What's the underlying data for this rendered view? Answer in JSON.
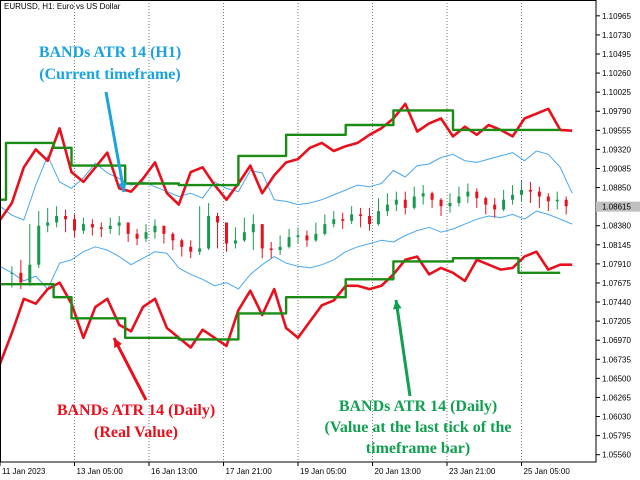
{
  "window": {
    "symbol_line": "EURUSD, H1:  Euro vs US Dollar"
  },
  "annotations": {
    "current_tf": {
      "line1": "BANDs ATR 14 (H1)",
      "line2": "(Current timeframe)",
      "color": "#1aa3de"
    },
    "daily_real": {
      "line1": "BANDs ATR 14 (Daily)",
      "line2": "(Real Value)",
      "color": "#e8101c"
    },
    "daily_last_tick": {
      "line1": "BANDs ATR 14 (Daily)",
      "line2": "(Value at the last tick of the",
      "line3": "timeframe bar)",
      "color": "#10a050"
    }
  },
  "colors": {
    "up_candle": "#1a9a50",
    "down_candle": "#e8101c",
    "h1_bands": "#4aa8ee",
    "daily_real_bands": "#e8101c",
    "daily_step_bands": "#1a8c16",
    "grid": "#555555",
    "axis_text": "#000000"
  },
  "chart_data": {
    "type": "line",
    "title": "",
    "xlabel": "",
    "ylabel": "",
    "ylim": [
      1.0547,
      1.1116
    ],
    "y_ticks": [
      "1.10965",
      "1.10730",
      "1.10495",
      "1.10260",
      "1.10025",
      "1.09790",
      "1.09555",
      "1.09320",
      "1.09085",
      "1.08850",
      "1.08615",
      "1.08380",
      "1.08145",
      "1.07910",
      "1.07675",
      "1.07440",
      "1.07205",
      "1.06970",
      "1.06735",
      "1.06500",
      "1.06265",
      "1.06030",
      "1.05795",
      "1.05560"
    ],
    "x_ticks": [
      "11 Jan 2023",
      "13 Jan 05:00",
      "16 Jan 13:00",
      "17 Jan 21:00",
      "19 Jan 05:00",
      "20 Jan 13:00",
      "23 Jan 21:00",
      "25 Jan 05:00"
    ],
    "x_range": [
      0,
      100
    ],
    "x_tick_positions": [
      0,
      12.5,
      25,
      37.5,
      50,
      62.5,
      75,
      87.5
    ],
    "last_price": 1.08615,
    "series": [
      {
        "name": "BANDs ATR 14 (H1)",
        "kind": "upper",
        "x": [
          0,
          2,
          4,
          6,
          8,
          10,
          12,
          14,
          16,
          18,
          20,
          22,
          24,
          26,
          28,
          30,
          32,
          34,
          36,
          38,
          40,
          42,
          44,
          46,
          48,
          50,
          52,
          54,
          56,
          58,
          60,
          62,
          64,
          66,
          68,
          70,
          72,
          74,
          76,
          78,
          80,
          82,
          84,
          86,
          88,
          90,
          92,
          94,
          96
        ],
        "values": [
          1.0862,
          1.0851,
          1.0845,
          1.0888,
          1.0924,
          1.0892,
          1.0884,
          1.0897,
          1.0915,
          1.0903,
          1.0896,
          1.0888,
          1.0892,
          1.0886,
          1.088,
          1.0874,
          1.0878,
          1.0872,
          1.0892,
          1.0884,
          1.088,
          1.0906,
          1.0903,
          1.087,
          1.0868,
          1.0864,
          1.0866,
          1.087,
          1.0876,
          1.0882,
          1.0888,
          1.0886,
          1.089,
          1.0906,
          1.0898,
          1.0912,
          1.0914,
          1.0922,
          1.0926,
          1.0918,
          1.0916,
          1.092,
          1.0924,
          1.0928,
          1.0918,
          1.093,
          1.0926,
          1.091,
          1.0878
        ]
      },
      {
        "name": "BANDs ATR 14 (H1)",
        "kind": "lower",
        "x": [
          0,
          2,
          4,
          6,
          8,
          10,
          12,
          14,
          16,
          18,
          20,
          22,
          24,
          26,
          28,
          30,
          32,
          34,
          36,
          38,
          40,
          42,
          44,
          46,
          48,
          50,
          52,
          54,
          56,
          58,
          60,
          62,
          64,
          66,
          68,
          70,
          72,
          74,
          76,
          78,
          80,
          82,
          84,
          86,
          88,
          90,
          92,
          94,
          96
        ],
        "values": [
          1.0788,
          1.078,
          1.077,
          1.0776,
          1.076,
          1.0792,
          1.0796,
          1.0806,
          1.0812,
          1.0808,
          1.08,
          1.079,
          1.0798,
          1.0806,
          1.0804,
          1.0786,
          1.0778,
          1.0772,
          1.0764,
          1.0768,
          1.076,
          1.0778,
          1.079,
          1.08,
          1.0792,
          1.0788,
          1.0786,
          1.079,
          1.0796,
          1.0806,
          1.0812,
          1.0816,
          1.082,
          1.0818,
          1.0826,
          1.0832,
          1.0836,
          1.083,
          1.0834,
          1.084,
          1.0846,
          1.085,
          1.0848,
          1.0852,
          1.0846,
          1.0856,
          1.0852,
          1.0846,
          1.084
        ]
      },
      {
        "name": "BANDs ATR 14 (Daily)",
        "kind": "upper-real",
        "x": [
          0,
          2,
          4,
          6,
          8,
          10,
          12,
          14,
          16,
          18,
          20,
          22,
          24,
          26,
          28,
          30,
          32,
          34,
          36,
          38,
          40,
          42,
          44,
          46,
          48,
          50,
          52,
          54,
          56,
          58,
          60,
          62,
          64,
          66,
          68,
          70,
          72,
          74,
          76,
          78,
          80,
          82,
          84,
          86,
          88,
          90,
          92,
          94,
          96
        ],
        "values": [
          1.0845,
          1.0866,
          1.091,
          1.0932,
          1.0918,
          1.0958,
          1.0904,
          1.0892,
          1.091,
          1.0928,
          1.0884,
          1.088,
          1.0896,
          1.0916,
          1.0878,
          1.0864,
          1.0904,
          1.091,
          1.0888,
          1.087,
          1.089,
          1.0912,
          1.0878,
          1.09,
          1.0916,
          1.092,
          1.0934,
          1.094,
          1.093,
          1.0936,
          1.094,
          1.095,
          1.0958,
          1.097,
          1.0988,
          1.0954,
          1.0964,
          1.097,
          1.0948,
          1.096,
          1.095,
          1.0962,
          1.0956,
          1.0948,
          1.097,
          1.0976,
          1.0982,
          1.0956,
          1.0955
        ]
      },
      {
        "name": "BANDs ATR 14 (Daily)",
        "kind": "lower-real",
        "x": [
          0,
          2,
          4,
          6,
          8,
          10,
          12,
          14,
          16,
          18,
          20,
          22,
          24,
          26,
          28,
          30,
          32,
          34,
          36,
          38,
          40,
          42,
          44,
          46,
          48,
          50,
          52,
          54,
          56,
          58,
          60,
          62,
          64,
          66,
          68,
          70,
          72,
          74,
          76,
          78,
          80,
          82,
          84,
          86,
          88,
          90,
          92,
          94,
          96
        ],
        "values": [
          1.0668,
          1.0706,
          1.0748,
          1.0742,
          1.076,
          1.0768,
          1.0742,
          1.07,
          1.0738,
          1.0748,
          1.0716,
          1.0708,
          1.0738,
          1.0748,
          1.0712,
          1.07,
          1.0688,
          1.071,
          1.07,
          1.069,
          1.0734,
          1.0758,
          1.0728,
          1.076,
          1.0712,
          1.07,
          1.072,
          1.074,
          1.0746,
          1.0764,
          1.0764,
          1.076,
          1.0764,
          1.0778,
          1.0796,
          1.08,
          1.0778,
          1.0786,
          1.078,
          1.077,
          1.0796,
          1.079,
          1.0784,
          1.0786,
          1.08,
          1.0806,
          1.0784,
          1.079,
          1.079
        ]
      },
      {
        "name": "BANDs ATR 14 (Daily)",
        "kind": "upper-step",
        "x": [
          0,
          1,
          1,
          9,
          9,
          12,
          12,
          21,
          21,
          30,
          30,
          40,
          40,
          48,
          48,
          58,
          58,
          66,
          66,
          76,
          76,
          87,
          87,
          94
        ],
        "values": [
          1.087,
          1.087,
          1.094,
          1.094,
          1.0934,
          1.0934,
          1.0912,
          1.0912,
          1.089,
          1.089,
          1.0888,
          1.0888,
          1.0924,
          1.0924,
          1.095,
          1.095,
          1.0962,
          1.0962,
          1.098,
          1.098,
          1.0956,
          1.0956,
          1.0956,
          1.0956
        ]
      },
      {
        "name": "BANDs ATR 14 (Daily)",
        "kind": "lower-step",
        "x": [
          0,
          1,
          1,
          9,
          9,
          12,
          12,
          21,
          21,
          30,
          30,
          40,
          40,
          48,
          48,
          58,
          58,
          66,
          66,
          76,
          76,
          87,
          87,
          94
        ],
        "values": [
          1.0766,
          1.0766,
          1.0766,
          1.0766,
          1.075,
          1.075,
          1.0724,
          1.0724,
          1.07,
          1.07,
          1.0698,
          1.0698,
          1.073,
          1.073,
          1.075,
          1.075,
          1.0772,
          1.0772,
          1.0794,
          1.0794,
          1.0798,
          1.0798,
          1.078,
          1.078
        ]
      }
    ],
    "candles": {
      "x": [
        2,
        3.5,
        5,
        6.5,
        8,
        9.5,
        11,
        12.5,
        14,
        15.5,
        17,
        18.5,
        20,
        21.5,
        23,
        24.5,
        26,
        27.5,
        29,
        30.5,
        32,
        33.5,
        35,
        36.5,
        38,
        39.5,
        41,
        42.5,
        44,
        45.5,
        47,
        48.5,
        50,
        51.5,
        53,
        54.5,
        56,
        57.5,
        59,
        60.5,
        62,
        63.5,
        65,
        66.5,
        68,
        69.5,
        71,
        72.5,
        74,
        75.5,
        77,
        78.5,
        80,
        81.5,
        83,
        84.5,
        86,
        87.5,
        89,
        90.5,
        92,
        93.5,
        95
      ],
      "close": [
        1.078,
        1.0768,
        1.079,
        1.0838,
        1.0842,
        1.085,
        1.0846,
        1.0832,
        1.084,
        1.0836,
        1.0834,
        1.0838,
        1.0842,
        1.0828,
        1.0822,
        1.083,
        1.0838,
        1.0828,
        1.082,
        1.0812,
        1.0806,
        1.081,
        1.085,
        1.0842,
        1.0816,
        1.082,
        1.083,
        1.084,
        1.081,
        1.0808,
        1.0812,
        1.0824,
        1.0826,
        1.082,
        1.0828,
        1.084,
        1.0846,
        1.0844,
        1.0852,
        1.085,
        1.084,
        1.0856,
        1.0864,
        1.087,
        1.086,
        1.0874,
        1.0878,
        1.087,
        1.0862,
        1.0866,
        1.0874,
        1.088,
        1.0872,
        1.0864,
        1.0858,
        1.087,
        1.0876,
        1.0882,
        1.088,
        1.0874,
        1.0868,
        1.087,
        1.0862
      ],
      "high": [
        1.0788,
        1.0796,
        1.084,
        1.0856,
        1.086,
        1.0862,
        1.0858,
        1.0852,
        1.0848,
        1.0846,
        1.0842,
        1.0848,
        1.085,
        1.0838,
        1.0834,
        1.084,
        1.0846,
        1.0836,
        1.083,
        1.0822,
        1.082,
        1.0862,
        1.0866,
        1.0854,
        1.083,
        1.0836,
        1.0848,
        1.0852,
        1.0826,
        1.0818,
        1.0826,
        1.0834,
        1.0836,
        1.0832,
        1.0842,
        1.0852,
        1.0856,
        1.0854,
        1.0862,
        1.086,
        1.086,
        1.0872,
        1.0878,
        1.088,
        1.088,
        1.0886,
        1.0888,
        1.088,
        1.0872,
        1.0878,
        1.0886,
        1.089,
        1.0884,
        1.0874,
        1.0872,
        1.0882,
        1.0888,
        1.0894,
        1.0892,
        1.0886,
        1.0878,
        1.088,
        1.0874
      ],
      "low": [
        1.0762,
        1.076,
        1.0764,
        1.0786,
        1.083,
        1.0836,
        1.083,
        1.0824,
        1.0828,
        1.0826,
        1.0824,
        1.0828,
        1.0826,
        1.0818,
        1.0814,
        1.0818,
        1.0822,
        1.0816,
        1.0808,
        1.08,
        1.0798,
        1.0802,
        1.0808,
        1.081,
        1.0806,
        1.081,
        1.0818,
        1.0808,
        1.0798,
        1.0798,
        1.0802,
        1.081,
        1.0816,
        1.0812,
        1.0818,
        1.0826,
        1.0836,
        1.0834,
        1.084,
        1.0836,
        1.0832,
        1.0838,
        1.085,
        1.0856,
        1.0852,
        1.0858,
        1.0864,
        1.086,
        1.085,
        1.0854,
        1.0862,
        1.0866,
        1.086,
        1.0852,
        1.0848,
        1.0856,
        1.0864,
        1.0868,
        1.0866,
        1.086,
        1.0856,
        1.0858,
        1.0852
      ]
    }
  }
}
